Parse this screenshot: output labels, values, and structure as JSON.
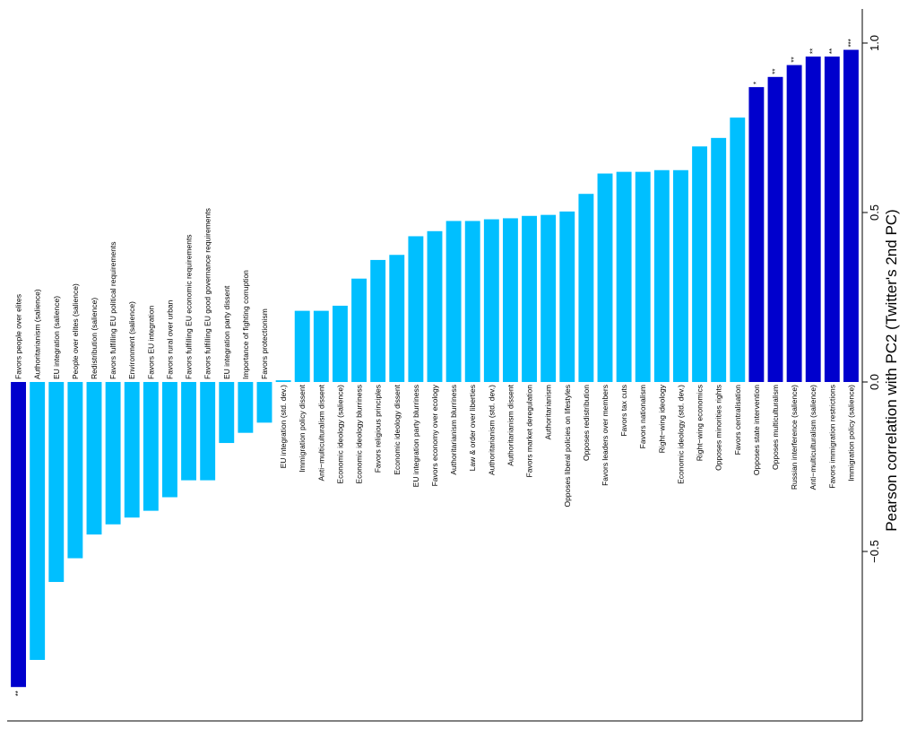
{
  "chart_data": {
    "type": "bar",
    "orientation": "rotated 90° clockwise (value axis on right, categories left to right)",
    "ylabel": "Pearson correlation with PC2 (Twitter's 2nd PC)",
    "ylim": [
      -0.92,
      1.12
    ],
    "yticks": [
      -0.5,
      0.0,
      0.5,
      1.0
    ],
    "ytick_labels": [
      "−0.5",
      "0.0",
      "0.5",
      "1.0"
    ],
    "grid": false,
    "colors": {
      "significant": "#0000CD",
      "not_significant": "#00BFFF"
    },
    "categories": [
      "Favors people over elites",
      "Authoritarianism (salience)",
      "EU integration (salience)",
      "People over elites (salience)",
      "Redistribution (salience)",
      "Favors fulfilling EU political requirements",
      "Environment (salience)",
      "Favors EU integration",
      "Favors rural over urban",
      "Favors fulfilling EU economic requirements",
      "Favors fulfilling EU good governance requirements",
      "EU integration party dissent",
      "Importance of fighting corruption",
      "Favors protectionism",
      "EU integration (std. dev.)",
      "Immigration policy dissent",
      "Anti−multiculturalism dissent",
      "Economic ideology (salience)",
      "Economic ideology blurriness",
      "Favors religious principles",
      "Economic ideology dissent",
      "EU integration party blurriness",
      "Favors economy over ecology",
      "Authoritarianism blurriness",
      "Law & order over liberties",
      "Authoritarianism (std. dev.)",
      "Authoritarianism dissent",
      "Favors market deregulation",
      "Authoritarianism",
      "Opposes liberal policies on lifestyles",
      "Opposes redistribution",
      "Favors leaders over members",
      "Favors tax cuts",
      "Favors nationalism",
      "Right−wing ideology",
      "Economic ideology (std. dev.)",
      "Right−wing economics",
      "Opposes minorities rights",
      "Favors centralisation",
      "Opposes state intervention",
      "Opposes multiculturalism",
      "Russian interference (salience)",
      "Anti−multiculturalism (salience)",
      "Favors immigration restrictions",
      "Immigration policy (salience)"
    ],
    "values": [
      -0.9,
      -0.82,
      -0.59,
      -0.52,
      -0.45,
      -0.42,
      -0.4,
      -0.38,
      -0.34,
      -0.29,
      -0.29,
      -0.18,
      -0.15,
      -0.12,
      0.005,
      0.21,
      0.21,
      0.225,
      0.305,
      0.36,
      0.375,
      0.43,
      0.445,
      0.475,
      0.475,
      0.48,
      0.483,
      0.49,
      0.493,
      0.503,
      0.555,
      0.615,
      0.62,
      0.62,
      0.625,
      0.625,
      0.695,
      0.72,
      0.78,
      0.87,
      0.9,
      0.935,
      0.96,
      0.96,
      0.98
    ],
    "significance": [
      "**",
      "",
      "",
      "",
      "",
      "",
      "",
      "",
      "",
      "",
      "",
      "",
      "",
      "",
      "",
      "",
      "",
      "",
      "",
      "",
      "",
      "",
      "",
      "",
      "",
      "",
      "",
      "",
      "",
      "",
      "",
      "",
      "",
      "",
      "",
      "",
      "",
      "",
      "",
      "*",
      "**",
      "**",
      "**",
      "**",
      "***"
    ]
  }
}
